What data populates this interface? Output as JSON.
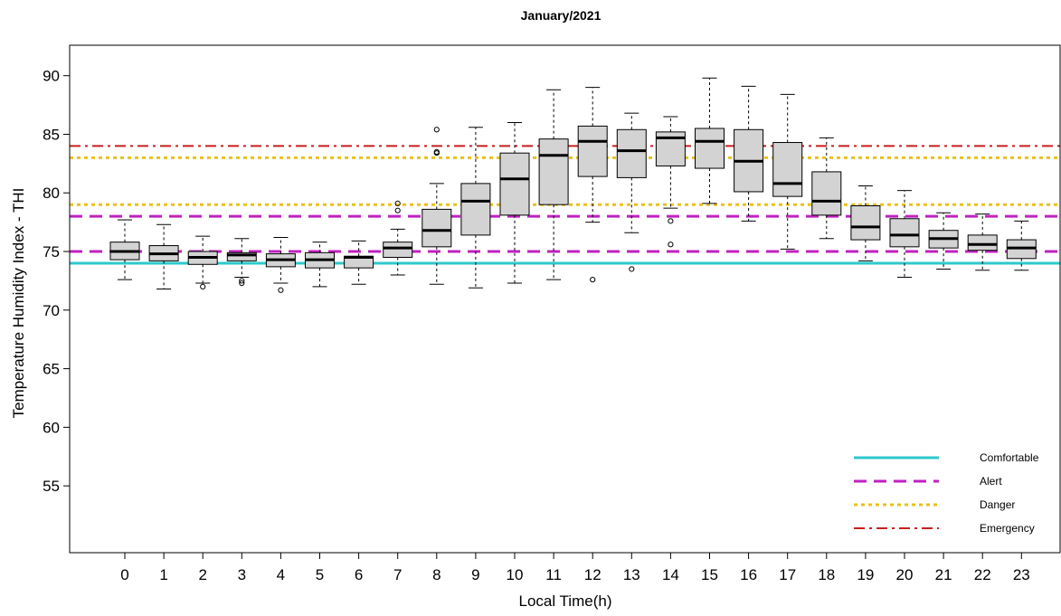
{
  "chart_data": {
    "type": "boxplot",
    "title": "January/2021",
    "xlabel": "Local Time(h)",
    "ylabel": "Temperature Humidity Index - THI",
    "ylim": [
      49.3,
      92.6
    ],
    "yticks": [
      55,
      60,
      65,
      70,
      75,
      80,
      85,
      90
    ],
    "legend_position": "bottom-right",
    "grid": false,
    "categories": [
      "0",
      "1",
      "2",
      "3",
      "4",
      "5",
      "6",
      "7",
      "8",
      "9",
      "10",
      "11",
      "12",
      "13",
      "14",
      "15",
      "16",
      "17",
      "18",
      "19",
      "20",
      "21",
      "22",
      "23"
    ],
    "boxes": [
      {
        "x": "0",
        "min": 72.6,
        "q1": 74.3,
        "median": 75.0,
        "q3": 75.8,
        "max": 77.7,
        "outliers": []
      },
      {
        "x": "1",
        "min": 71.8,
        "q1": 74.2,
        "median": 74.8,
        "q3": 75.5,
        "max": 77.3,
        "outliers": []
      },
      {
        "x": "2",
        "min": 72.3,
        "q1": 73.9,
        "median": 74.5,
        "q3": 75.0,
        "max": 76.3,
        "outliers": [
          72.0
        ]
      },
      {
        "x": "3",
        "min": 72.8,
        "q1": 74.2,
        "median": 74.7,
        "q3": 74.9,
        "max": 76.1,
        "outliers": [
          72.5,
          72.3
        ]
      },
      {
        "x": "4",
        "min": 72.3,
        "q1": 73.7,
        "median": 74.3,
        "q3": 74.8,
        "max": 76.2,
        "outliers": [
          71.7
        ]
      },
      {
        "x": "5",
        "min": 72.0,
        "q1": 73.6,
        "median": 74.3,
        "q3": 74.9,
        "max": 75.8,
        "outliers": []
      },
      {
        "x": "6",
        "min": 72.2,
        "q1": 73.6,
        "median": 74.5,
        "q3": 74.6,
        "max": 75.9,
        "outliers": []
      },
      {
        "x": "7",
        "min": 73.0,
        "q1": 74.5,
        "median": 75.3,
        "q3": 75.8,
        "max": 76.9,
        "outliers": [
          78.5,
          79.1
        ]
      },
      {
        "x": "8",
        "min": 72.2,
        "q1": 75.4,
        "median": 76.8,
        "q3": 78.6,
        "max": 80.8,
        "outliers": [
          83.4,
          83.5,
          85.4
        ]
      },
      {
        "x": "9",
        "min": 71.9,
        "q1": 76.4,
        "median": 79.3,
        "q3": 80.8,
        "max": 85.6,
        "outliers": []
      },
      {
        "x": "10",
        "min": 72.3,
        "q1": 78.1,
        "median": 81.2,
        "q3": 83.4,
        "max": 86.0,
        "outliers": []
      },
      {
        "x": "11",
        "min": 72.6,
        "q1": 79.0,
        "median": 83.2,
        "q3": 84.6,
        "max": 88.8,
        "outliers": []
      },
      {
        "x": "12",
        "min": 77.5,
        "q1": 81.4,
        "median": 84.4,
        "q3": 85.7,
        "max": 89.0,
        "outliers": [
          72.6
        ]
      },
      {
        "x": "13",
        "min": 76.6,
        "q1": 81.3,
        "median": 83.6,
        "q3": 85.4,
        "max": 86.8,
        "outliers": [
          73.5
        ]
      },
      {
        "x": "14",
        "min": 78.7,
        "q1": 82.3,
        "median": 84.7,
        "q3": 85.2,
        "max": 86.5,
        "outliers": [
          77.6,
          75.6
        ]
      },
      {
        "x": "15",
        "min": 79.1,
        "q1": 82.1,
        "median": 84.4,
        "q3": 85.5,
        "max": 89.8,
        "outliers": []
      },
      {
        "x": "16",
        "min": 77.6,
        "q1": 80.1,
        "median": 82.7,
        "q3": 85.4,
        "max": 89.1,
        "outliers": []
      },
      {
        "x": "17",
        "min": 75.2,
        "q1": 79.7,
        "median": 80.8,
        "q3": 84.3,
        "max": 88.4,
        "outliers": []
      },
      {
        "x": "18",
        "min": 76.1,
        "q1": 78.1,
        "median": 79.3,
        "q3": 81.8,
        "max": 84.7,
        "outliers": []
      },
      {
        "x": "19",
        "min": 74.2,
        "q1": 76.0,
        "median": 77.1,
        "q3": 78.9,
        "max": 80.6,
        "outliers": []
      },
      {
        "x": "20",
        "min": 72.8,
        "q1": 75.4,
        "median": 76.4,
        "q3": 77.8,
        "max": 80.2,
        "outliers": []
      },
      {
        "x": "21",
        "min": 73.5,
        "q1": 75.3,
        "median": 76.1,
        "q3": 76.8,
        "max": 78.3,
        "outliers": []
      },
      {
        "x": "22",
        "min": 73.4,
        "q1": 75.1,
        "median": 75.6,
        "q3": 76.4,
        "max": 78.2,
        "outliers": []
      },
      {
        "x": "23",
        "min": 73.4,
        "q1": 74.4,
        "median": 75.3,
        "q3": 76.0,
        "max": 77.6,
        "outliers": []
      }
    ],
    "reference_lines": [
      {
        "name": "Comfortable",
        "y": 74,
        "color": "#2ec8cc",
        "style": "solid"
      },
      {
        "name": "Alert",
        "y": 75,
        "color": "#c021c0",
        "style": "dashed"
      },
      {
        "name": "Alert",
        "y": 78,
        "color": "#c021c0",
        "style": "dashed"
      },
      {
        "name": "Danger",
        "y": 79,
        "color": "#e8c21a",
        "style": "dotted"
      },
      {
        "name": "Danger",
        "y": 83,
        "color": "#e8c21a",
        "style": "dotted"
      },
      {
        "name": "Emergency",
        "y": 84,
        "color": "#c81e1e",
        "style": "dashdot"
      }
    ],
    "legend": [
      {
        "label": "Comfortable",
        "color": "#2ec8cc",
        "style": "solid"
      },
      {
        "label": "Alert",
        "color": "#c021c0",
        "style": "dashed"
      },
      {
        "label": "Danger",
        "color": "#e8c21a",
        "style": "dotted"
      },
      {
        "label": "Emergency",
        "color": "#c81e1e",
        "style": "dashdot"
      }
    ],
    "box_fill": "#d3d3d3"
  }
}
